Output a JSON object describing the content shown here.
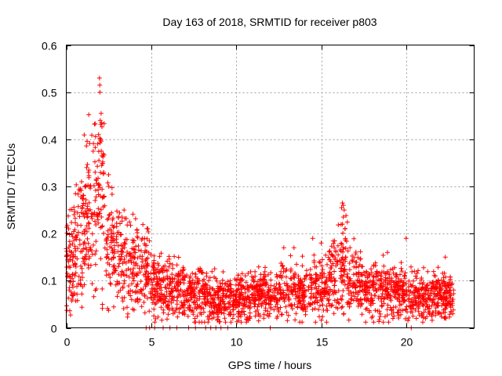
{
  "chart_data": {
    "type": "scatter",
    "title": "Day 163 of 2018, SRMTID for receiver p803",
    "xlabel": "GPS time / hours",
    "ylabel": "SRMTID / TECUs",
    "xlim": [
      0,
      24
    ],
    "ylim": [
      0,
      0.6
    ],
    "xticks": [
      0,
      5,
      10,
      15,
      20
    ],
    "xtick_labels": [
      "0",
      "5",
      "10",
      "15",
      "20"
    ],
    "yticks": [
      0,
      0.1,
      0.2,
      0.3,
      0.4,
      0.5,
      0.6
    ],
    "ytick_labels": [
      "0",
      "0.1",
      "0.2",
      "0.3",
      "0.4",
      "0.5",
      "0.6"
    ],
    "grid": true,
    "marker": "+",
    "series": [
      {
        "name": "SRMTID",
        "color": "#ff0000",
        "profile": [
          [
            0.0,
            0.15
          ],
          [
            0.5,
            0.16
          ],
          [
            1.0,
            0.2
          ],
          [
            1.5,
            0.24
          ],
          [
            1.8,
            0.28
          ],
          [
            2.0,
            0.3
          ],
          [
            2.3,
            0.24
          ],
          [
            2.6,
            0.18
          ],
          [
            3.0,
            0.15
          ],
          [
            3.5,
            0.14
          ],
          [
            4.0,
            0.12
          ],
          [
            4.5,
            0.13
          ],
          [
            5.0,
            0.1
          ],
          [
            6.0,
            0.08
          ],
          [
            7.0,
            0.08
          ],
          [
            8.0,
            0.07
          ],
          [
            9.0,
            0.06
          ],
          [
            10.0,
            0.06
          ],
          [
            11.0,
            0.07
          ],
          [
            12.0,
            0.07
          ],
          [
            13.0,
            0.08
          ],
          [
            14.0,
            0.08
          ],
          [
            15.0,
            0.09
          ],
          [
            16.0,
            0.11
          ],
          [
            16.4,
            0.13
          ],
          [
            17.0,
            0.09
          ],
          [
            18.0,
            0.08
          ],
          [
            19.0,
            0.08
          ],
          [
            20.0,
            0.07
          ],
          [
            21.0,
            0.07
          ],
          [
            22.0,
            0.07
          ],
          [
            22.8,
            0.06
          ]
        ],
        "peaks": [
          [
            1.95,
            0.53
          ],
          [
            1.97,
            0.515
          ],
          [
            1.98,
            0.5
          ],
          [
            2.05,
            0.455
          ],
          [
            2.0,
            0.44
          ],
          [
            2.08,
            0.435
          ],
          [
            1.9,
            0.41
          ],
          [
            2.02,
            0.4
          ],
          [
            1.85,
            0.39
          ],
          [
            2.06,
            0.375
          ],
          [
            2.1,
            0.365
          ],
          [
            1.92,
            0.355
          ],
          [
            1.2,
            0.34
          ],
          [
            1.3,
            0.33
          ],
          [
            1.7,
            0.33
          ],
          [
            2.2,
            0.33
          ],
          [
            0.9,
            0.31
          ],
          [
            1.1,
            0.3
          ],
          [
            2.5,
            0.3
          ],
          [
            3.4,
            0.25
          ],
          [
            16.25,
            0.265
          ],
          [
            16.3,
            0.26
          ],
          [
            16.2,
            0.255
          ],
          [
            16.35,
            0.25
          ],
          [
            16.3,
            0.235
          ],
          [
            16.25,
            0.22
          ],
          [
            16.4,
            0.21
          ],
          [
            20.0,
            0.19
          ],
          [
            4.6,
            0.19
          ],
          [
            4.8,
            0.21
          ],
          [
            14.5,
            0.19
          ],
          [
            15.0,
            0.18
          ],
          [
            13.4,
            0.17
          ],
          [
            12.8,
            0.17
          ],
          [
            18.9,
            0.16
          ],
          [
            22.3,
            0.15
          ]
        ],
        "zeros": [
          4.7,
          4.9,
          5.2,
          5.7,
          6.1,
          6.5,
          7.2,
          7.6,
          8.2,
          8.5,
          8.8,
          9.1,
          9.5,
          12.0,
          20.3
        ]
      }
    ]
  }
}
